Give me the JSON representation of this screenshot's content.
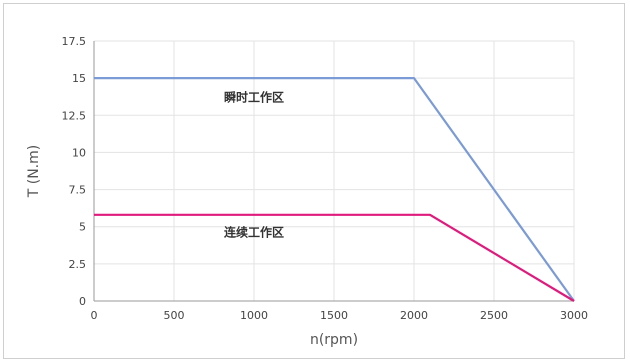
{
  "chart_data": {
    "type": "line",
    "xlabel": "n(rpm)",
    "ylabel": "T (N.m)",
    "xlim": [
      0,
      3000
    ],
    "ylim": [
      0,
      17.5
    ],
    "x_ticks": [
      0,
      500,
      1000,
      1500,
      2000,
      2500,
      3000
    ],
    "x_tick_labels": [
      "0",
      "500",
      "1000",
      "1500",
      "2000",
      "2500",
      "3000"
    ],
    "y_ticks": [
      0,
      2.5,
      5,
      7.5,
      10,
      12.5,
      15,
      17.5
    ],
    "y_tick_labels": [
      "0",
      "2.5",
      "5",
      "7.5",
      "10",
      "12.5",
      "15",
      "17.5"
    ],
    "grid": true,
    "series": [
      {
        "color": "#7b9bd6",
        "x": [
          0,
          2000,
          3000
        ],
        "y": [
          15,
          15,
          0
        ]
      },
      {
        "color": "#e0197d",
        "x": [
          0,
          2100,
          3000
        ],
        "y": [
          5.8,
          5.8,
          0
        ]
      }
    ],
    "annotations": [
      {
        "text": "瞬时工作区",
        "x": 1000,
        "y": 13.7
      },
      {
        "text": "连续工作区",
        "x": 1000,
        "y": 4.6
      }
    ]
  }
}
